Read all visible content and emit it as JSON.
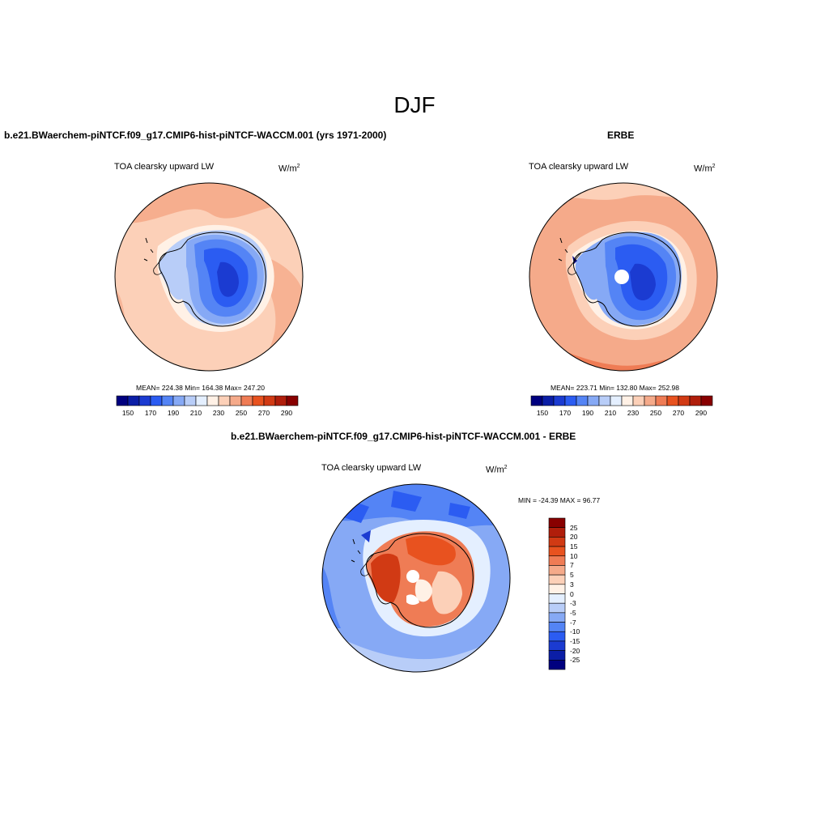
{
  "figure": {
    "title": "DJF"
  },
  "colors": {
    "abs_scale": [
      "#00007f",
      "#0b1ea6",
      "#1b3bd1",
      "#2b5cf2",
      "#5484f5",
      "#86a9f5",
      "#b8cdf8",
      "#e4efff",
      "#fff1e6",
      "#fcd0b8",
      "#f5aa8a",
      "#ef7c55",
      "#e8521f",
      "#d13a14",
      "#b01e0b",
      "#880000"
    ],
    "diff_scale": [
      "#00007f",
      "#0b1ea6",
      "#1b3bd1",
      "#2b5cf2",
      "#5484f5",
      "#86a9f5",
      "#b8cdf8",
      "#e4efff",
      "#fff1e6",
      "#fcd0b8",
      "#f5aa8a",
      "#ef7c55",
      "#e8521f",
      "#d13a14",
      "#b01e0b",
      "#880000"
    ]
  },
  "panels": {
    "model": {
      "title": "b.e21.BWaerchem-piNTCF.f09_g17.CMIP6-hist-piNTCF-WACCM.001 (yrs 1971-2000)",
      "variable": "TOA clearsky upward LW",
      "units_base": "W/m",
      "units_exp": "2",
      "stats": "MEAN= 224.38  Min= 164.38  Max= 247.20",
      "tick_labels": [
        "150",
        "170",
        "190",
        "210",
        "230",
        "250",
        "270",
        "290"
      ]
    },
    "obs": {
      "title": "ERBE",
      "variable": "TOA clearsky upward LW",
      "units_base": "W/m",
      "units_exp": "2",
      "stats": "MEAN= 223.71  Min= 132.80  Max= 252.98",
      "tick_labels": [
        "150",
        "170",
        "190",
        "210",
        "230",
        "250",
        "270",
        "290"
      ]
    },
    "diff": {
      "title": "b.e21.BWaerchem-piNTCF.f09_g17.CMIP6-hist-piNTCF-WACCM.001 - ERBE",
      "variable": "TOA clearsky upward LW",
      "units_base": "W/m",
      "units_exp": "2",
      "stats": "MIN = -24.39 MAX =  96.77",
      "tick_labels": [
        "25",
        "20",
        "15",
        "10",
        "7",
        "5",
        "3",
        "0",
        "-3",
        "-5",
        "-7",
        "-10",
        "-15",
        "-20",
        "-25"
      ]
    }
  }
}
